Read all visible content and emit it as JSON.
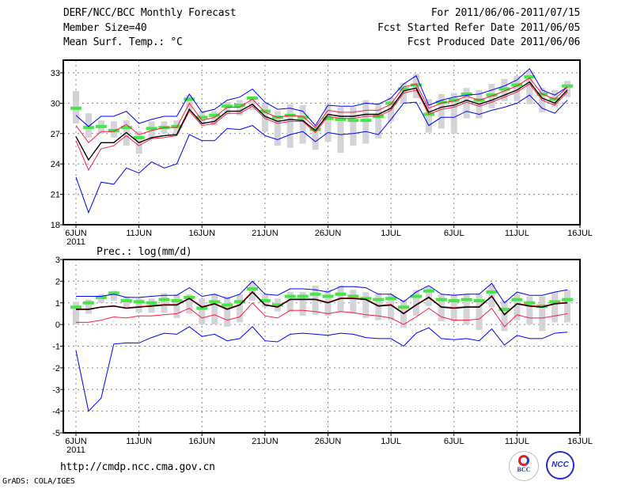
{
  "header": {
    "title": "DERF/NCC/BCC Monthly Forecast",
    "member_size": "Member Size=40",
    "variable": "Mean Surf. Temp.: °C",
    "period": "For 2011/06/06-2011/07/15",
    "started": "Fcst Started Refer Date 2011/06/05",
    "produced": "Fcst Produced Date 2011/06/06"
  },
  "footer": {
    "url": "http://cmdp.ncc.cma.gov.cn",
    "credit": "GrADS: COLA/IGES",
    "logo1": "BCC",
    "logo2": "NCC"
  },
  "colors": {
    "max_min": "#0000ff",
    "ci": "#ff1a40",
    "mean": "#000000",
    "marker": "#44e844",
    "range": "#d3d3d8",
    "grid": "#888888"
  },
  "chart_data": [
    {
      "type": "line",
      "title": "Mean Surf. Temp.: °C",
      "xlabel": "",
      "ylabel": "°C",
      "ylim": [
        18,
        34.25
      ],
      "yticks": [
        18,
        21,
        24,
        27,
        30,
        33
      ],
      "xticks": [
        {
          "day": 0,
          "label": "6JUN"
        },
        {
          "day": 5,
          "label": "11JUN"
        },
        {
          "day": 10,
          "label": "16JUN"
        },
        {
          "day": 15,
          "label": "21JUN"
        },
        {
          "day": 20,
          "label": "26JUN"
        },
        {
          "day": 25,
          "label": "1JUL"
        },
        {
          "day": 30,
          "label": "6JUL"
        },
        {
          "day": 35,
          "label": "11JUL"
        },
        {
          "day": 40,
          "label": "16JUL"
        }
      ],
      "year_label": "2011",
      "grid": true,
      "series": [
        {
          "name": "max",
          "color": "#0000ff",
          "values": [
            28.8,
            27.7,
            28.7,
            28.7,
            29.2,
            28.0,
            28.4,
            28.7,
            28.7,
            30.9,
            29.1,
            29.4,
            30.3,
            30.6,
            31.4,
            30.1,
            29.4,
            29.5,
            29.2,
            27.8,
            29.8,
            29.7,
            29.7,
            30.0,
            29.9,
            30.5,
            31.9,
            32.7,
            29.8,
            30.3,
            30.6,
            30.8,
            30.9,
            31.3,
            31.7,
            32.3,
            33.4,
            31.3,
            30.8,
            31.6
          ]
        },
        {
          "name": "min",
          "color": "#0000ff",
          "values": [
            22.7,
            19.2,
            22.2,
            22.0,
            23.6,
            23.1,
            24.2,
            23.6,
            24.0,
            26.9,
            26.3,
            26.3,
            27.5,
            27.4,
            27.8,
            26.8,
            26.4,
            26.9,
            27.2,
            26.2,
            27.1,
            26.9,
            27.0,
            27.2,
            26.9,
            28.4,
            30.0,
            30.1,
            27.8,
            28.6,
            28.6,
            29.2,
            28.9,
            29.3,
            29.6,
            30.0,
            30.8,
            29.5,
            29.0,
            30.3
          ]
        },
        {
          "name": "ci_upper",
          "color": "#ff1a40",
          "values": [
            27.8,
            26.1,
            27.2,
            27.2,
            27.9,
            26.9,
            27.3,
            27.6,
            27.6,
            30.0,
            28.3,
            28.6,
            29.6,
            29.6,
            30.4,
            29.1,
            28.6,
            28.8,
            28.7,
            27.6,
            29.3,
            29.1,
            29.1,
            29.3,
            29.3,
            29.9,
            31.6,
            31.9,
            29.5,
            30.0,
            30.2,
            30.7,
            30.3,
            30.7,
            31.2,
            31.7,
            32.5,
            30.9,
            30.4,
            31.6
          ]
        },
        {
          "name": "ci_lower",
          "color": "#ff1a40",
          "values": [
            26.3,
            23.4,
            25.5,
            25.8,
            26.8,
            25.8,
            26.5,
            26.6,
            26.8,
            29.2,
            27.8,
            28.0,
            29.0,
            29.0,
            29.7,
            28.5,
            28.0,
            28.2,
            28.2,
            27.1,
            28.7,
            28.5,
            28.5,
            28.7,
            28.7,
            29.3,
            31.0,
            31.3,
            28.9,
            29.4,
            29.6,
            30.1,
            29.7,
            30.1,
            30.6,
            31.1,
            31.9,
            30.3,
            29.8,
            31.1
          ]
        },
        {
          "name": "mean",
          "color": "#000000",
          "values": [
            26.7,
            24.4,
            26.1,
            26.1,
            27.1,
            26.1,
            26.6,
            26.8,
            26.9,
            29.4,
            28.0,
            28.2,
            29.2,
            29.2,
            29.9,
            28.7,
            28.2,
            28.4,
            28.3,
            27.3,
            28.9,
            28.7,
            28.7,
            28.9,
            28.9,
            29.5,
            31.2,
            31.5,
            29.1,
            29.6,
            29.8,
            30.3,
            29.9,
            30.3,
            30.8,
            31.3,
            32.1,
            30.5,
            30.0,
            31.3
          ]
        }
      ],
      "markers": [
        29.5,
        27.6,
        27.7,
        27.3,
        27.6,
        26.6,
        27.5,
        27.6,
        27.7,
        30.4,
        28.6,
        28.8,
        29.7,
        29.8,
        30.5,
        29.2,
        28.6,
        28.8,
        28.6,
        27.4,
        28.5,
        28.4,
        28.3,
        28.3,
        28.7,
        30.0,
        31.4,
        31.8,
        28.9,
        30.1,
        30.3,
        30.9,
        30.3,
        30.8,
        31.4,
        31.8,
        32.6,
        30.9,
        30.4,
        31.7
      ],
      "range_low": [
        28.0,
        26.6,
        27.0,
        26.6,
        25.8,
        25.0,
        26.5,
        27.0,
        27.0,
        29.3,
        27.9,
        27.8,
        28.9,
        28.8,
        29.3,
        27.2,
        25.8,
        25.6,
        26.0,
        25.4,
        26.2,
        25.1,
        25.8,
        26.0,
        26.5,
        28.2,
        30.0,
        30.5,
        27.1,
        27.5,
        27.0,
        28.5,
        28.5,
        29.5,
        30.2,
        30.2,
        29.9,
        29.1,
        29.6,
        30.6
      ],
      "range_high": [
        31.2,
        29.0,
        28.3,
        28.2,
        28.3,
        27.2,
        28.2,
        28.2,
        28.3,
        30.8,
        29.2,
        29.2,
        30.1,
        30.3,
        30.6,
        30.0,
        29.2,
        29.9,
        29.8,
        27.8,
        29.9,
        29.6,
        29.6,
        30.3,
        30.0,
        30.6,
        32.0,
        32.9,
        30.4,
        30.9,
        31.0,
        31.5,
        31.3,
        31.9,
        32.4,
        32.7,
        33.2,
        31.5,
        31.3,
        32.2
      ]
    },
    {
      "type": "line",
      "title": "Prec.: log(mm/d)",
      "xlabel": "",
      "ylabel": "log(mm/d)",
      "ylim": [
        -5,
        3
      ],
      "yticks": [
        -5,
        -4,
        -3,
        -2,
        -1,
        0,
        1,
        2,
        3
      ],
      "xticks": [
        {
          "day": 0,
          "label": "6JUN"
        },
        {
          "day": 5,
          "label": "11JUN"
        },
        {
          "day": 10,
          "label": "16JUN"
        },
        {
          "day": 15,
          "label": "21JUN"
        },
        {
          "day": 20,
          "label": "26JUN"
        },
        {
          "day": 25,
          "label": "1JUL"
        },
        {
          "day": 30,
          "label": "6JUL"
        },
        {
          "day": 35,
          "label": "11JUL"
        },
        {
          "day": 40,
          "label": "16JUL"
        }
      ],
      "year_label": "2011",
      "grid": true,
      "series": [
        {
          "name": "max",
          "color": "#0000ff",
          "values": [
            1.3,
            1.3,
            1.3,
            1.4,
            1.25,
            1.25,
            1.3,
            1.35,
            1.35,
            1.7,
            1.3,
            1.4,
            1.2,
            1.4,
            2.0,
            1.4,
            1.35,
            1.65,
            1.65,
            1.6,
            1.5,
            1.75,
            1.75,
            1.7,
            1.4,
            1.4,
            1.05,
            1.5,
            1.8,
            1.4,
            1.35,
            1.4,
            1.4,
            1.9,
            1.0,
            1.5,
            1.35,
            1.35,
            1.5,
            1.6
          ]
        },
        {
          "name": "min",
          "color": "#0000ff",
          "values": [
            -1.2,
            -4.0,
            -3.4,
            -0.9,
            -0.85,
            -0.85,
            -0.6,
            -0.4,
            -0.45,
            -0.1,
            -0.55,
            -0.45,
            -0.75,
            -0.65,
            -0.1,
            -0.75,
            -0.8,
            -0.45,
            -0.4,
            -0.45,
            -0.5,
            -0.4,
            -0.45,
            -0.6,
            -0.65,
            -0.65,
            -1.0,
            -0.4,
            -0.15,
            -0.65,
            -0.7,
            -0.65,
            -0.75,
            -0.2,
            -0.95,
            -0.5,
            -0.65,
            -0.65,
            -0.4,
            -0.35
          ]
        },
        {
          "name": "ci_upper",
          "color": "#ff1a40",
          "values": [
            0.72,
            0.72,
            0.82,
            0.87,
            0.77,
            0.83,
            0.88,
            0.93,
            0.93,
            1.23,
            0.83,
            0.98,
            0.73,
            0.93,
            1.53,
            0.93,
            0.83,
            1.18,
            1.18,
            1.18,
            1.03,
            1.23,
            1.23,
            1.18,
            0.88,
            0.93,
            0.53,
            0.93,
            1.28,
            0.83,
            0.78,
            0.83,
            0.83,
            1.33,
            0.48,
            0.98,
            0.88,
            0.83,
            0.98,
            1.03
          ]
        },
        {
          "name": "ci_lower",
          "color": "#ff1a40",
          "values": [
            0.1,
            0.1,
            0.2,
            0.35,
            0.3,
            0.4,
            0.4,
            0.45,
            0.5,
            0.75,
            0.3,
            0.45,
            0.2,
            0.35,
            1.0,
            0.4,
            0.3,
            0.65,
            0.65,
            0.6,
            0.5,
            0.6,
            0.55,
            0.45,
            0.4,
            0.3,
            0.0,
            0.35,
            0.75,
            0.35,
            0.2,
            0.2,
            0.25,
            0.75,
            -0.1,
            0.45,
            0.3,
            0.3,
            0.4,
            0.5
          ]
        },
        {
          "name": "mean",
          "color": "#000000",
          "values": [
            0.7,
            0.7,
            0.8,
            0.85,
            0.75,
            0.8,
            0.85,
            0.9,
            0.9,
            1.2,
            0.8,
            0.95,
            0.7,
            0.9,
            1.5,
            0.9,
            0.8,
            1.15,
            1.15,
            1.15,
            1.0,
            1.2,
            1.2,
            1.15,
            0.85,
            0.9,
            0.5,
            0.9,
            1.25,
            0.8,
            0.75,
            0.8,
            0.8,
            1.3,
            0.45,
            0.95,
            0.85,
            0.8,
            0.95,
            1.0
          ]
        }
      ],
      "markers": [
        0.8,
        1.0,
        1.25,
        1.45,
        1.1,
        1.05,
        1.0,
        1.15,
        1.1,
        1.25,
        0.75,
        1.05,
        0.9,
        1.05,
        1.65,
        1.1,
        0.9,
        1.3,
        1.3,
        1.4,
        1.3,
        1.4,
        1.3,
        1.2,
        1.15,
        1.2,
        0.8,
        1.3,
        1.55,
        1.15,
        1.1,
        1.15,
        1.1,
        1.5,
        0.7,
        1.15,
        1.0,
        0.85,
        1.05,
        1.15
      ],
      "range_low": [
        0.0,
        0.5,
        1.0,
        1.1,
        0.8,
        0.55,
        0.55,
        0.55,
        0.3,
        0.5,
        0.0,
        0.0,
        -0.1,
        0.1,
        1.1,
        0.8,
        0.6,
        0.6,
        0.4,
        0.45,
        0.4,
        0.6,
        0.5,
        0.3,
        0.2,
        0.2,
        -0.15,
        0.4,
        0.85,
        0.15,
        0.15,
        0.0,
        -0.25,
        0.8,
        -0.3,
        0.2,
        0.0,
        -0.3,
        0.1,
        0.1
      ],
      "range_high": [
        1.05,
        1.15,
        1.4,
        1.55,
        1.3,
        1.2,
        1.2,
        1.45,
        1.4,
        1.4,
        1.2,
        1.4,
        1.3,
        1.4,
        1.95,
        1.4,
        1.2,
        1.5,
        1.5,
        1.8,
        1.6,
        1.8,
        1.6,
        1.5,
        1.45,
        1.4,
        1.15,
        1.6,
        1.75,
        1.4,
        1.4,
        1.4,
        1.4,
        1.85,
        1.1,
        1.4,
        1.3,
        1.3,
        1.5,
        1.6
      ]
    }
  ]
}
